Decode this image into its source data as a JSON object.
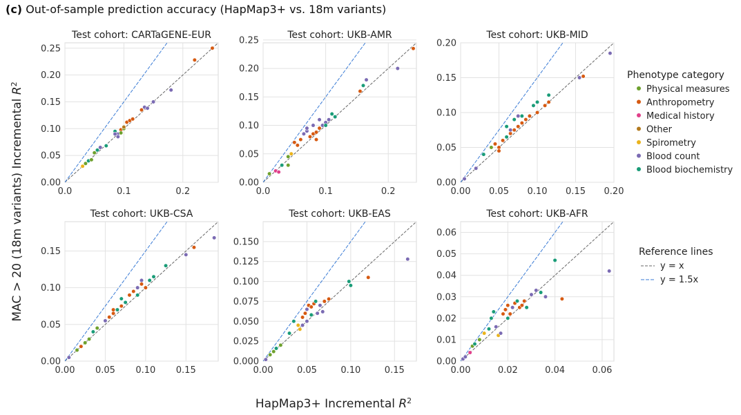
{
  "figure": {
    "label": "(c)",
    "title": "Out-of-sample prediction accuracy (HapMap3+ vs. 18m variants)",
    "xlabel_text": "HapMap3+ Incremental ",
    "xlabel_math": "R",
    "xlabel_sup": "2",
    "ylabel_text": "MAC > 20 (18m variants) Incremental ",
    "ylabel_math": "R",
    "ylabel_sup": "2"
  },
  "legend": {
    "title": "Phenotype category",
    "categories": [
      {
        "name": "Physical measures",
        "color": "#6ea12e"
      },
      {
        "name": "Anthropometry",
        "color": "#d65a12"
      },
      {
        "name": "Medical history",
        "color": "#e0408a"
      },
      {
        "name": "Other",
        "color": "#b37a1e"
      },
      {
        "name": "Spirometry",
        "color": "#eab31c"
      },
      {
        "name": "Blood count",
        "color": "#7b6bb3"
      },
      {
        "name": "Blood biochemistry",
        "color": "#1a9c78"
      }
    ],
    "ref_title": "Reference lines",
    "ref_lines": [
      {
        "label": "y = x",
        "color": "#666666",
        "slope": 1
      },
      {
        "label": "y = 1.5x",
        "color": "#3a7bd5",
        "slope": 1.5
      }
    ]
  },
  "chart_data": [
    {
      "type": "scatter",
      "title": "Test cohort: CARTaGENE-EUR",
      "xlim": [
        0,
        0.26
      ],
      "ylim": [
        0,
        0.26
      ],
      "xticks": [
        "0.0",
        "0.1",
        "0.2"
      ],
      "xtick_values": [
        0,
        0.1,
        0.2
      ],
      "yticks": [
        "0.00",
        "0.05",
        "0.10",
        "0.15",
        "0.20",
        "0.25"
      ],
      "ytick_values": [
        0,
        0.05,
        0.1,
        0.15,
        0.2,
        0.25
      ],
      "points": [
        [
          0.03,
          0.03,
          4
        ],
        [
          0.035,
          0.035,
          0
        ],
        [
          0.04,
          0.04,
          6
        ],
        [
          0.045,
          0.042,
          0
        ],
        [
          0.05,
          0.055,
          0
        ],
        [
          0.055,
          0.06,
          6
        ],
        [
          0.06,
          0.065,
          5
        ],
        [
          0.07,
          0.068,
          6
        ],
        [
          0.085,
          0.095,
          6
        ],
        [
          0.09,
          0.09,
          5
        ],
        [
          0.095,
          0.098,
          1
        ],
        [
          0.1,
          0.1,
          0
        ],
        [
          0.105,
          0.112,
          1
        ],
        [
          0.11,
          0.115,
          1
        ],
        [
          0.115,
          0.118,
          1
        ],
        [
          0.09,
          0.085,
          5
        ],
        [
          0.13,
          0.135,
          1
        ],
        [
          0.135,
          0.14,
          5
        ],
        [
          0.14,
          0.138,
          5
        ],
        [
          0.15,
          0.15,
          5
        ],
        [
          0.18,
          0.172,
          5
        ],
        [
          0.22,
          0.228,
          1
        ],
        [
          0.25,
          0.25,
          1
        ],
        [
          0.095,
          0.092,
          0
        ],
        [
          0.1,
          0.103,
          3
        ],
        [
          0.085,
          0.09,
          5
        ]
      ]
    },
    {
      "type": "scatter",
      "title": "Test cohort: UKB-AMR",
      "xlim": [
        0,
        0.245
      ],
      "ylim": [
        0,
        0.245
      ],
      "xticks": [
        "0.0",
        "0.1",
        "0.2"
      ],
      "xtick_values": [
        0,
        0.1,
        0.2
      ],
      "yticks": [
        "0.00",
        "0.05",
        "0.10",
        "0.15",
        "0.20",
        "0.25"
      ],
      "ytick_values": [
        0,
        0.05,
        0.1,
        0.15,
        0.2,
        0.25
      ],
      "points": [
        [
          0.01,
          0.015,
          0
        ],
        [
          0.02,
          0.02,
          2
        ],
        [
          0.025,
          0.018,
          2
        ],
        [
          0.03,
          0.03,
          6
        ],
        [
          0.04,
          0.045,
          0
        ],
        [
          0.045,
          0.05,
          4
        ],
        [
          0.05,
          0.07,
          1
        ],
        [
          0.055,
          0.065,
          1
        ],
        [
          0.06,
          0.075,
          1
        ],
        [
          0.065,
          0.085,
          5
        ],
        [
          0.07,
          0.09,
          5
        ],
        [
          0.075,
          0.08,
          1
        ],
        [
          0.08,
          0.085,
          1
        ],
        [
          0.085,
          0.088,
          1
        ],
        [
          0.09,
          0.095,
          1
        ],
        [
          0.095,
          0.1,
          5
        ],
        [
          0.1,
          0.105,
          5
        ],
        [
          0.105,
          0.11,
          5
        ],
        [
          0.11,
          0.12,
          6
        ],
        [
          0.115,
          0.115,
          6
        ],
        [
          0.09,
          0.11,
          5
        ],
        [
          0.155,
          0.16,
          1
        ],
        [
          0.16,
          0.17,
          6
        ],
        [
          0.165,
          0.18,
          5
        ],
        [
          0.215,
          0.2,
          5
        ],
        [
          0.24,
          0.235,
          1
        ],
        [
          0.08,
          0.1,
          5
        ],
        [
          0.07,
          0.095,
          5
        ],
        [
          0.085,
          0.075,
          1
        ],
        [
          0.1,
          0.1,
          6
        ],
        [
          0.04,
          0.03,
          0
        ]
      ]
    },
    {
      "type": "scatter",
      "title": "Test cohort: UKB-MID",
      "xlim": [
        0,
        0.2
      ],
      "ylim": [
        0,
        0.2
      ],
      "xticks": [
        "0.00",
        "0.05",
        "0.10",
        "0.15",
        "0.20"
      ],
      "xtick_values": [
        0,
        0.05,
        0.1,
        0.15,
        0.2
      ],
      "yticks": [
        "0.00",
        "0.05",
        "0.10",
        "0.15",
        "0.20"
      ],
      "ytick_values": [
        0,
        0.05,
        0.1,
        0.15,
        0.2
      ],
      "points": [
        [
          0.005,
          0.005,
          5
        ],
        [
          0.02,
          0.02,
          5
        ],
        [
          0.03,
          0.04,
          6
        ],
        [
          0.04,
          0.05,
          0
        ],
        [
          0.045,
          0.055,
          1
        ],
        [
          0.05,
          0.05,
          1
        ],
        [
          0.055,
          0.06,
          1
        ],
        [
          0.06,
          0.065,
          6
        ],
        [
          0.065,
          0.07,
          1
        ],
        [
          0.07,
          0.075,
          1
        ],
        [
          0.075,
          0.08,
          1
        ],
        [
          0.08,
          0.085,
          1
        ],
        [
          0.085,
          0.09,
          1
        ],
        [
          0.09,
          0.095,
          1
        ],
        [
          0.1,
          0.1,
          1
        ],
        [
          0.11,
          0.11,
          1
        ],
        [
          0.115,
          0.115,
          1
        ],
        [
          0.08,
          0.095,
          6
        ],
        [
          0.07,
          0.09,
          6
        ],
        [
          0.06,
          0.08,
          6
        ],
        [
          0.095,
          0.11,
          6
        ],
        [
          0.1,
          0.115,
          6
        ],
        [
          0.115,
          0.125,
          6
        ],
        [
          0.155,
          0.15,
          5
        ],
        [
          0.16,
          0.152,
          1
        ],
        [
          0.195,
          0.185,
          5
        ],
        [
          0.05,
          0.045,
          1
        ],
        [
          0.065,
          0.075,
          5
        ],
        [
          0.075,
          0.095,
          5
        ]
      ]
    },
    {
      "type": "scatter",
      "title": "Test cohort: UKB-CSA",
      "xlim": [
        0,
        0.19
      ],
      "ylim": [
        0,
        0.19
      ],
      "xticks": [
        "0.00",
        "0.05",
        "0.10",
        "0.15"
      ],
      "xtick_values": [
        0,
        0.05,
        0.1,
        0.15
      ],
      "yticks": [
        "0.00",
        "0.05",
        "0.10",
        "0.15"
      ],
      "ytick_values": [
        0,
        0.05,
        0.1,
        0.15
      ],
      "points": [
        [
          0.005,
          0.005,
          5
        ],
        [
          0.015,
          0.015,
          0
        ],
        [
          0.02,
          0.02,
          1
        ],
        [
          0.025,
          0.025,
          0
        ],
        [
          0.03,
          0.03,
          0
        ],
        [
          0.035,
          0.04,
          6
        ],
        [
          0.04,
          0.045,
          0
        ],
        [
          0.05,
          0.055,
          5
        ],
        [
          0.055,
          0.06,
          1
        ],
        [
          0.06,
          0.065,
          1
        ],
        [
          0.065,
          0.07,
          6
        ],
        [
          0.07,
          0.075,
          1
        ],
        [
          0.075,
          0.08,
          6
        ],
        [
          0.08,
          0.09,
          1
        ],
        [
          0.085,
          0.095,
          1
        ],
        [
          0.09,
          0.1,
          5
        ],
        [
          0.095,
          0.105,
          1
        ],
        [
          0.1,
          0.1,
          1
        ],
        [
          0.105,
          0.11,
          6
        ],
        [
          0.11,
          0.115,
          6
        ],
        [
          0.09,
          0.09,
          6
        ],
        [
          0.125,
          0.13,
          6
        ],
        [
          0.15,
          0.145,
          5
        ],
        [
          0.16,
          0.155,
          1
        ],
        [
          0.185,
          0.168,
          5
        ],
        [
          0.07,
          0.085,
          6
        ],
        [
          0.06,
          0.07,
          1
        ],
        [
          0.095,
          0.11,
          5
        ]
      ]
    },
    {
      "type": "scatter",
      "title": "Test cohort: UKB-EAS",
      "xlim": [
        0,
        0.175
      ],
      "ylim": [
        0,
        0.175
      ],
      "xticks": [
        "0.00",
        "0.05",
        "0.10",
        "0.15"
      ],
      "xtick_values": [
        0,
        0.05,
        0.1,
        0.15
      ],
      "yticks": [
        "0.000",
        "0.025",
        "0.050",
        "0.075",
        "0.100",
        "0.125",
        "0.150"
      ],
      "ytick_values": [
        0,
        0.025,
        0.05,
        0.075,
        0.1,
        0.125,
        0.15
      ],
      "points": [
        [
          0.003,
          0.002,
          5
        ],
        [
          0.008,
          0.008,
          0
        ],
        [
          0.012,
          0.012,
          0
        ],
        [
          0.015,
          0.016,
          6
        ],
        [
          0.02,
          0.02,
          0
        ],
        [
          0.03,
          0.035,
          6
        ],
        [
          0.035,
          0.05,
          6
        ],
        [
          0.04,
          0.045,
          4
        ],
        [
          0.042,
          0.04,
          4
        ],
        [
          0.045,
          0.055,
          1
        ],
        [
          0.048,
          0.06,
          1
        ],
        [
          0.05,
          0.065,
          5
        ],
        [
          0.052,
          0.07,
          1
        ],
        [
          0.055,
          0.068,
          1
        ],
        [
          0.058,
          0.072,
          1
        ],
        [
          0.06,
          0.075,
          6
        ],
        [
          0.062,
          0.06,
          5
        ],
        [
          0.065,
          0.07,
          5
        ],
        [
          0.07,
          0.075,
          1
        ],
        [
          0.075,
          0.078,
          1
        ],
        [
          0.05,
          0.05,
          5
        ],
        [
          0.045,
          0.045,
          5
        ],
        [
          0.098,
          0.1,
          6
        ],
        [
          0.1,
          0.095,
          6
        ],
        [
          0.12,
          0.105,
          1
        ],
        [
          0.165,
          0.128,
          5
        ],
        [
          0.068,
          0.062,
          5
        ],
        [
          0.055,
          0.058,
          6
        ]
      ]
    },
    {
      "type": "scatter",
      "title": "Test cohort: UKB-AFR",
      "xlim": [
        0,
        0.065
      ],
      "ylim": [
        0,
        0.065
      ],
      "xticks": [
        "0.00",
        "0.02",
        "0.04",
        "0.06"
      ],
      "xtick_values": [
        0,
        0.02,
        0.04,
        0.06
      ],
      "yticks": [
        "0.00",
        "0.01",
        "0.02",
        "0.03",
        "0.04",
        "0.05",
        "0.06"
      ],
      "ytick_values": [
        0,
        0.01,
        0.02,
        0.03,
        0.04,
        0.05,
        0.06
      ],
      "points": [
        [
          0.001,
          0.001,
          5
        ],
        [
          0.002,
          0.002,
          5
        ],
        [
          0.004,
          0.004,
          2
        ],
        [
          0.005,
          0.007,
          0
        ],
        [
          0.006,
          0.008,
          6
        ],
        [
          0.008,
          0.01,
          0
        ],
        [
          0.01,
          0.013,
          4
        ],
        [
          0.012,
          0.015,
          6
        ],
        [
          0.013,
          0.02,
          6
        ],
        [
          0.015,
          0.016,
          5
        ],
        [
          0.016,
          0.012,
          4
        ],
        [
          0.017,
          0.013,
          5
        ],
        [
          0.018,
          0.022,
          1
        ],
        [
          0.019,
          0.024,
          1
        ],
        [
          0.02,
          0.026,
          1
        ],
        [
          0.021,
          0.022,
          1
        ],
        [
          0.022,
          0.025,
          5
        ],
        [
          0.023,
          0.027,
          1
        ],
        [
          0.024,
          0.028,
          6
        ],
        [
          0.025,
          0.025,
          1
        ],
        [
          0.026,
          0.026,
          1
        ],
        [
          0.027,
          0.028,
          1
        ],
        [
          0.028,
          0.025,
          6
        ],
        [
          0.03,
          0.031,
          5
        ],
        [
          0.032,
          0.033,
          5
        ],
        [
          0.034,
          0.032,
          6
        ],
        [
          0.036,
          0.03,
          5
        ],
        [
          0.04,
          0.047,
          6
        ],
        [
          0.043,
          0.029,
          1
        ],
        [
          0.063,
          0.042,
          5
        ],
        [
          0.014,
          0.023,
          6
        ],
        [
          0.02,
          0.02,
          6
        ]
      ]
    }
  ]
}
